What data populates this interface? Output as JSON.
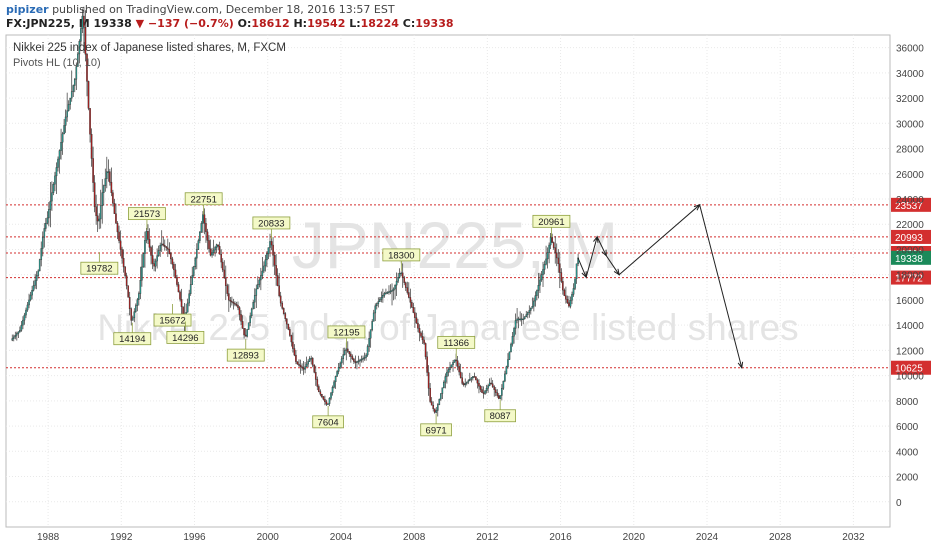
{
  "header": {
    "publisher": "pipizer",
    "published_text": "published on TradingView.com, December 18, 2016 13:57 EST",
    "symbol": "FX:JPN225, M",
    "last": "19338",
    "change": "−137 (−0.7%)",
    "open_label": "O:",
    "open": "18612",
    "high_label": "H:",
    "high": "19542",
    "low_label": "L:",
    "low": "18224",
    "close_label": "C:",
    "close": "19338"
  },
  "chart_data": {
    "type": "candlestick",
    "title": "Nikkei 225 index of Japanese listed shares, M, FXCM",
    "indicator": "Pivots HL (10, 10)",
    "watermark_symbol": "JPN225, M",
    "watermark_name": "Nikkei 225 index of Japanese listed shares",
    "xlim": [
      1985.7,
      2034.0
    ],
    "ylim": [
      -2000,
      37000
    ],
    "x_ticks": [
      1988,
      1992,
      1996,
      2000,
      2004,
      2008,
      2012,
      2016,
      2020,
      2024,
      2028,
      2032
    ],
    "y_ticks": [
      0,
      2000,
      4000,
      6000,
      8000,
      10000,
      12000,
      14000,
      16000,
      18000,
      20000,
      22000,
      24000,
      26000,
      28000,
      30000,
      32000,
      34000,
      36000
    ],
    "price_path": [
      [
        1986.0,
        12800
      ],
      [
        1986.5,
        13600
      ],
      [
        1987.0,
        16000
      ],
      [
        1987.5,
        18300
      ],
      [
        1987.8,
        21500
      ],
      [
        1988.0,
        22500
      ],
      [
        1988.5,
        26500
      ],
      [
        1989.0,
        30500
      ],
      [
        1989.5,
        33500
      ],
      [
        1989.95,
        38900
      ],
      [
        1990.3,
        29900
      ],
      [
        1990.6,
        23000
      ],
      [
        1990.8,
        22000
      ],
      [
        1991.0,
        24500
      ],
      [
        1991.3,
        26500
      ],
      [
        1991.7,
        22500
      ],
      [
        1992.0,
        20000
      ],
      [
        1992.3,
        17500
      ],
      [
        1992.6,
        14194
      ],
      [
        1993.0,
        16500
      ],
      [
        1993.4,
        21573
      ],
      [
        1993.8,
        18500
      ],
      [
        1994.2,
        20500
      ],
      [
        1994.6,
        20000
      ],
      [
        1994.9,
        18500
      ],
      [
        1995.5,
        14296
      ],
      [
        1995.9,
        17800
      ],
      [
        1996.5,
        22751
      ],
      [
        1996.9,
        19500
      ],
      [
        1997.3,
        20500
      ],
      [
        1997.9,
        16000
      ],
      [
        1998.4,
        15500
      ],
      [
        1998.8,
        12893
      ],
      [
        1999.4,
        16800
      ],
      [
        1999.8,
        18500
      ],
      [
        2000.2,
        20833
      ],
      [
        2000.7,
        16000
      ],
      [
        2001.2,
        13500
      ],
      [
        2001.6,
        11000
      ],
      [
        2002.0,
        10500
      ],
      [
        2002.4,
        11500
      ],
      [
        2002.8,
        8800
      ],
      [
        2003.3,
        7604
      ],
      [
        2003.8,
        10200
      ],
      [
        2004.3,
        12195
      ],
      [
        2004.8,
        11000
      ],
      [
        2005.4,
        11500
      ],
      [
        2005.9,
        15500
      ],
      [
        2006.4,
        16500
      ],
      [
        2006.9,
        16800
      ],
      [
        2007.3,
        18300
      ],
      [
        2007.9,
        15500
      ],
      [
        2008.3,
        13500
      ],
      [
        2008.6,
        12500
      ],
      [
        2008.9,
        8000
      ],
      [
        2009.2,
        6971
      ],
      [
        2009.8,
        10200
      ],
      [
        2010.3,
        11366
      ],
      [
        2010.7,
        9200
      ],
      [
        2011.3,
        10000
      ],
      [
        2011.8,
        8500
      ],
      [
        2012.2,
        9500
      ],
      [
        2012.7,
        8087
      ],
      [
        2013.2,
        11500
      ],
      [
        2013.6,
        14500
      ],
      [
        2014.0,
        14500
      ],
      [
        2014.5,
        15500
      ],
      [
        2014.9,
        17500
      ],
      [
        2015.3,
        19500
      ],
      [
        2015.5,
        20961
      ],
      [
        2015.9,
        19000
      ],
      [
        2016.2,
        16500
      ],
      [
        2016.5,
        15500
      ],
      [
        2016.8,
        17200
      ],
      [
        2016.95,
        19338
      ]
    ],
    "pivot_labels": [
      {
        "text": "19782",
        "x": 1990.8,
        "y": 19782,
        "pos": "below"
      },
      {
        "text": "14194",
        "x": 1992.6,
        "y": 14194,
        "pos": "below"
      },
      {
        "text": "21573",
        "x": 1993.4,
        "y": 21573,
        "pos": "above"
      },
      {
        "text": "15672",
        "x": 1994.8,
        "y": 15672,
        "pos": "below"
      },
      {
        "text": "14296",
        "x": 1995.5,
        "y": 14296,
        "pos": "below"
      },
      {
        "text": "22751",
        "x": 1996.5,
        "y": 22751,
        "pos": "above"
      },
      {
        "text": "12893",
        "x": 1998.8,
        "y": 12893,
        "pos": "below"
      },
      {
        "text": "20833",
        "x": 2000.2,
        "y": 20833,
        "pos": "above"
      },
      {
        "text": "7604",
        "x": 2003.3,
        "y": 7604,
        "pos": "below"
      },
      {
        "text": "12195",
        "x": 2004.3,
        "y": 12195,
        "pos": "above"
      },
      {
        "text": "18300",
        "x": 2007.3,
        "y": 18300,
        "pos": "above"
      },
      {
        "text": "6971",
        "x": 2009.2,
        "y": 6971,
        "pos": "below"
      },
      {
        "text": "11366",
        "x": 2010.3,
        "y": 11366,
        "pos": "above"
      },
      {
        "text": "8087",
        "x": 2012.7,
        "y": 8087,
        "pos": "below"
      },
      {
        "text": "20961",
        "x": 2015.5,
        "y": 20961,
        "pos": "above"
      }
    ],
    "h_levels": [
      {
        "value": 23537,
        "label": "23537",
        "color": "#d32f2f"
      },
      {
        "value": 20993,
        "label": "20993",
        "color": "#d32f2f"
      },
      {
        "value": 19721,
        "label": "19721",
        "color": "#d32f2f"
      },
      {
        "value": 17772,
        "label": "17772",
        "color": "#d32f2f"
      },
      {
        "value": 10625,
        "label": "10625",
        "color": "#d32f2f"
      }
    ],
    "last_price": {
      "value": 19338,
      "label": "19338",
      "color": "#1b8a5a"
    },
    "projection": [
      [
        2016.95,
        19338
      ],
      [
        2017.4,
        17800
      ],
      [
        2018.0,
        21000
      ],
      [
        2018.5,
        19500
      ],
      [
        2019.2,
        18000
      ],
      [
        2023.6,
        23537
      ],
      [
        2025.9,
        10625
      ]
    ],
    "colors": {
      "up": "#26a69a",
      "down": "#b71c1c",
      "pivot_fill": "#f4f9c8",
      "pivot_stroke": "#8fa040"
    }
  }
}
